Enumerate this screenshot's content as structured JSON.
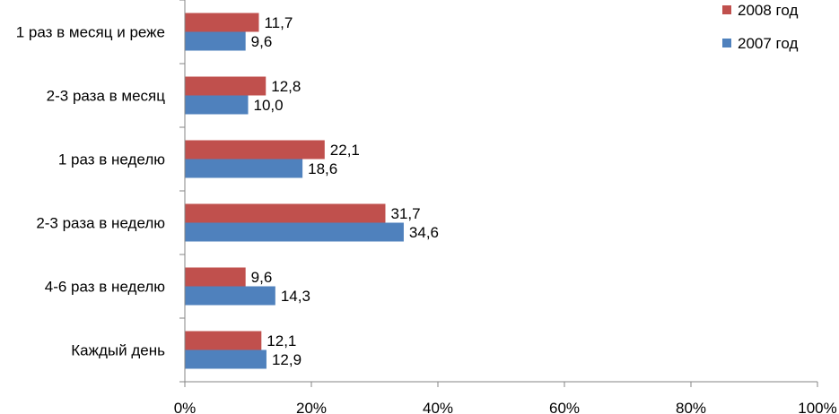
{
  "chart_data": {
    "type": "bar",
    "orientation": "horizontal",
    "categories": [
      "1 раз в месяц и реже",
      "2-3 раза в месяц",
      "1 раз в неделю",
      "2-3 раза в неделю",
      "4-6 раз в неделю",
      "Каждый день"
    ],
    "series": [
      {
        "name": "2008 год",
        "color": "#c0504d",
        "values": [
          11.7,
          12.8,
          22.1,
          31.7,
          9.6,
          12.1
        ],
        "labels": [
          "11,7",
          "12,8",
          "22,1",
          "31,7",
          "9,6",
          "12,1"
        ]
      },
      {
        "name": "2007 год",
        "color": "#4f81bd",
        "values": [
          9.6,
          10.0,
          18.6,
          34.6,
          14.3,
          12.9
        ],
        "labels": [
          "9,6",
          "10,0",
          "18,6",
          "34,6",
          "14,3",
          "12,9"
        ]
      }
    ],
    "xlim": [
      0,
      100
    ],
    "xticks": [
      0,
      20,
      40,
      60,
      80,
      100
    ],
    "xtick_labels": [
      "0%",
      "20%",
      "40%",
      "60%",
      "80%",
      "100%"
    ],
    "grid": false,
    "legend_position": "top-right"
  }
}
